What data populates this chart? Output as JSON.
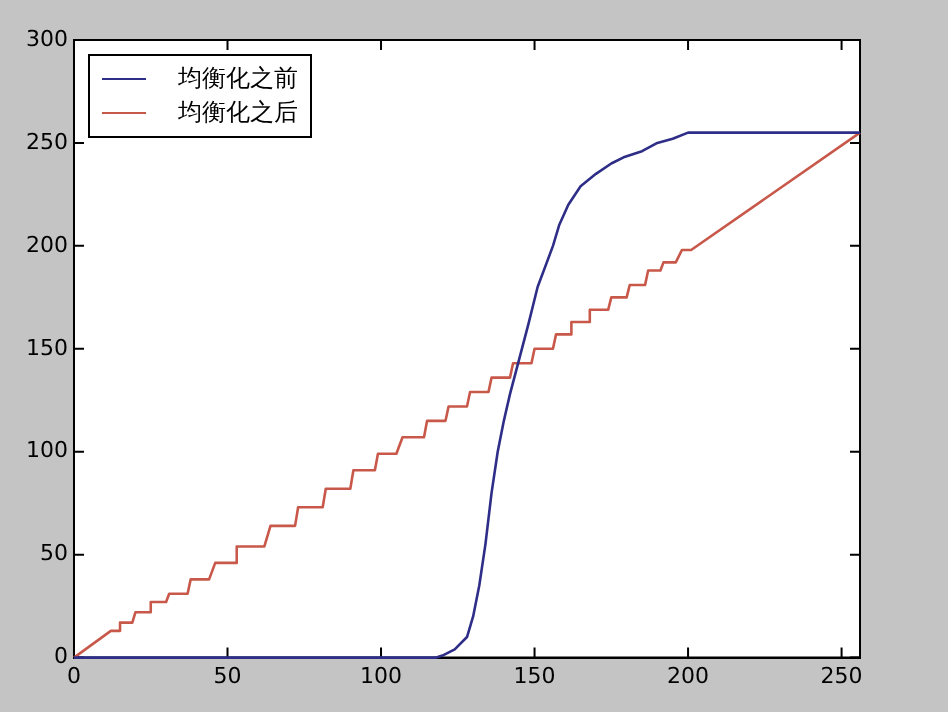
{
  "chart_data": {
    "type": "line",
    "xlim": [
      0,
      256
    ],
    "ylim": [
      0,
      300
    ],
    "xticks": [
      0,
      50,
      100,
      150,
      200,
      250
    ],
    "yticks": [
      0,
      50,
      100,
      150,
      200,
      250,
      300
    ],
    "grid": false,
    "legend": "top left",
    "marker": "none",
    "line_style": "solid",
    "series": [
      {
        "name": "均衡化之前",
        "color": "#2e2e88",
        "x": [
          0,
          118,
          120,
          124,
          128,
          130,
          132,
          134,
          136,
          138,
          140,
          142,
          145,
          148,
          151,
          154,
          156,
          158,
          161,
          165,
          170,
          175,
          179,
          185,
          190,
          195,
          200,
          245,
          256
        ],
        "values": [
          0,
          0,
          1,
          4,
          10,
          20,
          35,
          55,
          80,
          100,
          115,
          128,
          145,
          162,
          180,
          192,
          200,
          210,
          220,
          229,
          235,
          240,
          243,
          246,
          250,
          252,
          255,
          255,
          255
        ]
      },
      {
        "name": "均衡化之后",
        "color": "#c8584a",
        "x": [
          0,
          12,
          15,
          15,
          19,
          20,
          25,
          25,
          30,
          31,
          37,
          38,
          44,
          46,
          53,
          53,
          62,
          64,
          72,
          73,
          81,
          82,
          90,
          91,
          98,
          99,
          105,
          107,
          114,
          115,
          121,
          122,
          128,
          129,
          135,
          136,
          142,
          143,
          149,
          150,
          156,
          157,
          162,
          162,
          168,
          168,
          174,
          175,
          180,
          181,
          186,
          187,
          191,
          192,
          196,
          198,
          201,
          256
        ],
        "values": [
          0,
          13,
          13,
          17,
          17,
          22,
          22,
          27,
          27,
          31,
          31,
          38,
          38,
          46,
          46,
          54,
          54,
          64,
          64,
          73,
          73,
          82,
          82,
          91,
          91,
          99,
          99,
          107,
          107,
          115,
          115,
          122,
          122,
          129,
          129,
          136,
          136,
          143,
          143,
          150,
          150,
          157,
          157,
          163,
          163,
          169,
          169,
          175,
          175,
          181,
          181,
          188,
          188,
          192,
          192,
          198,
          198,
          255
        ]
      }
    ]
  }
}
